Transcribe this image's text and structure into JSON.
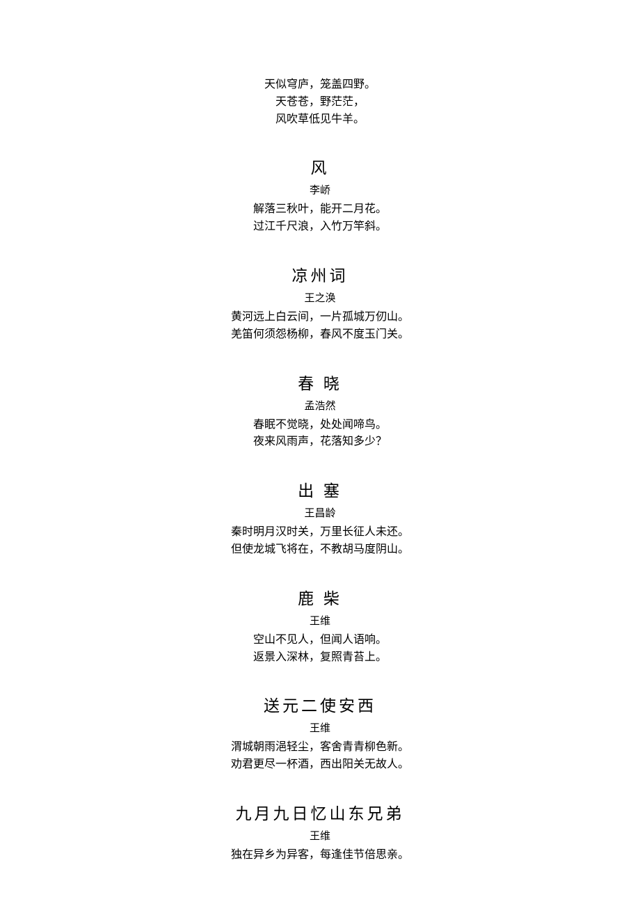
{
  "intro": {
    "lines": [
      "天似穹庐，笼盖四野。",
      "天苍苍，野茫茫，",
      "风吹草低见牛羊。"
    ]
  },
  "poems": [
    {
      "title": "风",
      "author": "李峤",
      "lines": [
        "解落三秋叶，能开二月花。",
        "过江千尺浪，入竹万竿斜。"
      ]
    },
    {
      "title": "凉州词",
      "author": "王之涣",
      "lines": [
        "黄河远上白云间，一片孤城万仞山。",
        "羌笛何须怨杨柳，春风不度玉门关。"
      ]
    },
    {
      "title": "春 晓",
      "author": "孟浩然",
      "lines": [
        "春眠不觉晓，处处闻啼鸟。",
        "夜来风雨声，花落知多少？"
      ]
    },
    {
      "title": "出 塞",
      "author": "王昌龄",
      "lines": [
        "秦时明月汉时关，万里长征人未还。",
        "但使龙城飞将在，不教胡马度阴山。"
      ]
    },
    {
      "title": "鹿 柴",
      "author": "王维",
      "lines": [
        "空山不见人，但闻人语响。",
        "返景入深林，复照青苔上。"
      ]
    },
    {
      "title": "送元二使安西",
      "author": "王维",
      "lines": [
        "渭城朝雨浥轻尘，客舍青青柳色新。",
        "劝君更尽一杯酒，西出阳关无故人。"
      ]
    },
    {
      "title": "九月九日忆山东兄弟",
      "author": "王维",
      "lines": [
        "独在异乡为异客，每逢佳节倍思亲。"
      ]
    }
  ]
}
